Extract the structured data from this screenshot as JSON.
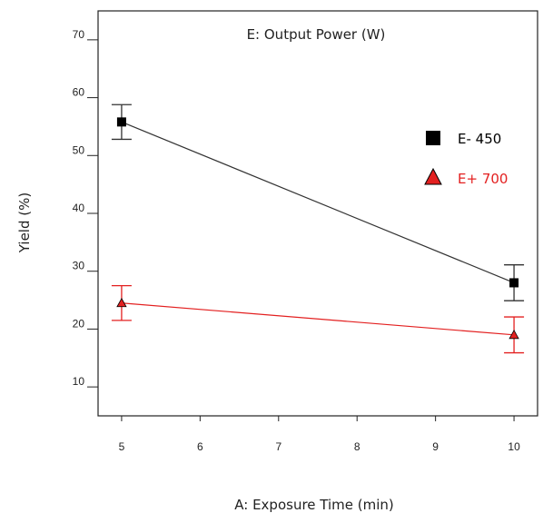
{
  "chart_data": {
    "type": "line",
    "title": "E: Output Power (W)",
    "xlabel": "A: Exposure Time (min)",
    "ylabel": "Yield (%)",
    "xlim": [
      4.7,
      10.3
    ],
    "ylim": [
      5,
      75
    ],
    "x_ticks": [
      5,
      6,
      7,
      8,
      9,
      10
    ],
    "y_ticks": [
      10,
      20,
      30,
      40,
      50,
      60,
      70
    ],
    "grid": false,
    "legend_position": "right",
    "series": [
      {
        "name": "E- 450",
        "marker": "square",
        "color": "#000000",
        "line_color": "#333333",
        "x": [
          5,
          10
        ],
        "y": [
          55.8,
          28.0
        ],
        "error": [
          3.0,
          3.1
        ]
      },
      {
        "name": "E+ 700",
        "marker": "triangle",
        "color": "#e32020",
        "line_color": "#e32020",
        "x": [
          5,
          10
        ],
        "y": [
          24.5,
          19.0
        ],
        "error": [
          3.0,
          3.1
        ]
      }
    ]
  }
}
